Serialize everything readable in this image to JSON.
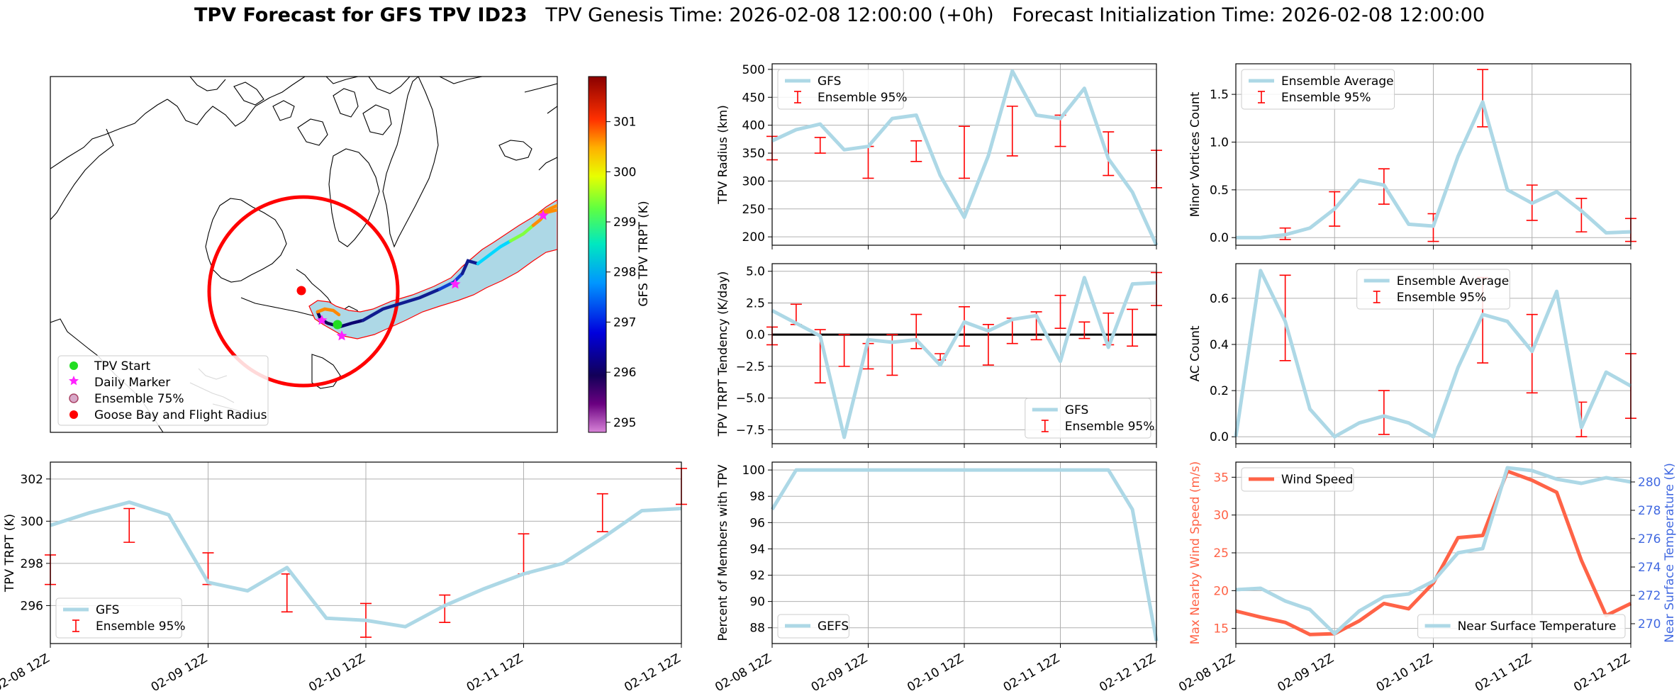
{
  "figure": {
    "title_bold": "TPV Forecast for GFS TPV ID23",
    "title_genesis": "TPV Genesis Time: 2026-02-08 12:00:00 (+0h)",
    "title_init": "Forecast Initialization Time: 2026-02-08 12:00:00"
  },
  "colors": {
    "gfs_line": "#add8e6",
    "error_bar": "#ff0000",
    "wind_line": "#ff6347",
    "temp_axis": "#4169e1",
    "grid": "#b0b0b0"
  },
  "map": {
    "colorbar_label": "GFS TPV TRPT (K)",
    "colorbar_ticks": [
      295,
      296,
      297,
      298,
      299,
      300,
      301
    ],
    "colorbar_range": [
      294.8,
      301.9
    ],
    "legend": [
      {
        "label": "TPV Start",
        "marker": "dot",
        "color": "#22dd22"
      },
      {
        "label": "Daily Marker",
        "marker": "star",
        "color": "#ff22ff"
      },
      {
        "label": "Ensemble 75%",
        "marker": "ring",
        "color": "#d8a8c8"
      },
      {
        "label": "Goose Bay and Flight Radius",
        "marker": "dot",
        "color": "#ff0000"
      }
    ]
  },
  "chart_data": [
    {
      "id": "radius",
      "type": "line",
      "xlabel": "",
      "ylabel": "TPV Radius (km)",
      "x_ticks": [],
      "xlim": [
        0,
        16
      ],
      "ylim": [
        185,
        510
      ],
      "y_ticks": [
        200,
        250,
        300,
        350,
        400,
        450,
        500
      ],
      "series": [
        {
          "name": "GFS",
          "values": [
            372,
            392,
            402,
            356,
            362,
            412,
            418,
            310,
            235,
            345,
            497,
            418,
            412,
            466,
            340,
            280,
            185
          ]
        }
      ],
      "error_bars": {
        "name": "Ensemble 95%",
        "x": [
          0,
          2,
          4,
          6,
          8,
          10,
          12,
          14,
          16
        ],
        "low": [
          338,
          350,
          305,
          335,
          305,
          345,
          362,
          310,
          288
        ],
        "high": [
          380,
          378,
          362,
          372,
          398,
          434,
          418,
          388,
          355
        ]
      },
      "legend": [
        "GFS",
        "Ensemble 95%"
      ]
    },
    {
      "id": "minor",
      "type": "line",
      "xlabel": "",
      "ylabel": "Minor Vortices Count",
      "x_ticks": [],
      "xlim": [
        0,
        16
      ],
      "ylim": [
        -0.08,
        1.82
      ],
      "y_ticks": [
        0.0,
        0.5,
        1.0,
        1.5
      ],
      "series": [
        {
          "name": "Ensemble Average",
          "values": [
            0.0,
            0.0,
            0.03,
            0.1,
            0.3,
            0.6,
            0.55,
            0.14,
            0.12,
            0.85,
            1.42,
            0.5,
            0.36,
            0.48,
            0.28,
            0.05,
            0.06
          ]
        }
      ],
      "error_bars": {
        "name": "Ensemble 95%",
        "x": [
          2,
          4,
          6,
          8,
          10,
          12,
          14,
          16
        ],
        "low": [
          -0.02,
          0.12,
          0.35,
          -0.04,
          1.16,
          0.18,
          0.06,
          -0.04
        ],
        "high": [
          0.1,
          0.48,
          0.72,
          0.25,
          1.76,
          0.55,
          0.41,
          0.2
        ]
      },
      "legend": [
        "Ensemble Average",
        "Ensemble 95%"
      ]
    },
    {
      "id": "tendency",
      "type": "line",
      "xlabel": "",
      "ylabel": "TPV TRPT Tendency (K/day)",
      "x_ticks": [],
      "xlim": [
        0,
        16
      ],
      "ylim": [
        -8.6,
        5.6
      ],
      "y_ticks": [
        -7.5,
        -5.0,
        -2.5,
        0.0,
        2.5,
        5.0
      ],
      "zero_line": true,
      "series": [
        {
          "name": "GFS",
          "values": [
            1.9,
            0.9,
            -0.1,
            -8.1,
            -0.4,
            -0.6,
            -0.4,
            -2.4,
            1.0,
            0.3,
            1.2,
            1.5,
            -2.1,
            4.5,
            -1.0,
            4.0,
            4.1
          ]
        }
      ],
      "error_bars": {
        "name": "Ensemble 95%",
        "x": [
          0,
          1,
          2,
          3,
          4,
          5,
          6,
          7,
          8,
          9,
          10,
          11,
          12,
          13,
          14,
          15,
          16
        ],
        "low": [
          -0.8,
          0.8,
          -3.8,
          -2.5,
          -2.7,
          -3.2,
          -1.1,
          -2.0,
          -0.9,
          -2.4,
          -0.7,
          -0.4,
          0.5,
          -0.3,
          -0.8,
          -0.9,
          2.3
        ],
        "high": [
          0.6,
          2.4,
          0.4,
          0.0,
          -0.7,
          0.0,
          1.6,
          -1.5,
          2.2,
          0.8,
          1.3,
          1.8,
          3.1,
          1.0,
          1.7,
          2.0,
          4.9
        ]
      },
      "legend": [
        "GFS",
        "Ensemble 95%"
      ]
    },
    {
      "id": "ac",
      "type": "line",
      "xlabel": "",
      "ylabel": "AC Count",
      "x_ticks": [],
      "xlim": [
        0,
        16
      ],
      "ylim": [
        -0.03,
        0.75
      ],
      "y_ticks": [
        0.0,
        0.2,
        0.4,
        0.6
      ],
      "series": [
        {
          "name": "Ensemble Average",
          "values": [
            0.0,
            0.72,
            0.5,
            0.12,
            0.0,
            0.06,
            0.09,
            0.06,
            0.0,
            0.3,
            0.53,
            0.5,
            0.37,
            0.63,
            0.04,
            0.28,
            0.22
          ]
        }
      ],
      "error_bars": {
        "name": "Ensemble 95%",
        "x": [
          2,
          6,
          10,
          12,
          14,
          16
        ],
        "low": [
          0.33,
          0.01,
          0.32,
          0.19,
          0.0,
          0.08
        ],
        "high": [
          0.7,
          0.2,
          0.69,
          0.53,
          0.15,
          0.36
        ]
      },
      "legend": [
        "Ensemble Average",
        "Ensemble 95%"
      ]
    },
    {
      "id": "trpt",
      "type": "line",
      "xlabel": "",
      "ylabel": "TPV TRPT (K)",
      "x_ticks": [
        "02-08 12Z",
        "02-09 12Z",
        "02-10 12Z",
        "02-11 12Z",
        "02-12 12Z"
      ],
      "xlim": [
        0,
        16
      ],
      "ylim": [
        294.2,
        302.8
      ],
      "y_ticks": [
        296,
        298,
        300,
        302
      ],
      "series": [
        {
          "name": "GFS",
          "values": [
            299.8,
            300.4,
            300.9,
            300.3,
            297.1,
            296.7,
            297.8,
            295.4,
            295.3,
            295.0,
            296.0,
            296.8,
            297.5,
            298.0,
            299.2,
            300.5,
            300.6
          ]
        }
      ],
      "error_bars": {
        "name": "Ensemble 95%",
        "x": [
          0,
          2,
          4,
          6,
          8,
          10,
          12,
          14,
          16
        ],
        "low": [
          297.0,
          299.0,
          297.0,
          295.7,
          294.5,
          295.2,
          297.5,
          299.5,
          300.8
        ],
        "high": [
          298.4,
          300.6,
          298.5,
          297.5,
          296.1,
          296.5,
          299.4,
          301.3,
          302.5
        ]
      },
      "legend": [
        "GFS",
        "Ensemble 95%"
      ]
    },
    {
      "id": "percent",
      "type": "line",
      "xlabel": "",
      "ylabel": "Percent of Members with TPV",
      "x_ticks": [
        "02-08 12Z",
        "02-09 12Z",
        "02-10 12Z",
        "02-11 12Z",
        "02-12 12Z"
      ],
      "xlim": [
        0,
        16
      ],
      "ylim": [
        86.8,
        100.6
      ],
      "y_ticks": [
        88,
        90,
        92,
        94,
        96,
        98,
        100
      ],
      "series": [
        {
          "name": "GEFS",
          "values": [
            97,
            100,
            100,
            100,
            100,
            100,
            100,
            100,
            100,
            100,
            100,
            100,
            100,
            100,
            100,
            97,
            87
          ]
        }
      ],
      "legend": [
        "GEFS"
      ]
    },
    {
      "id": "wind_temp",
      "type": "line",
      "xlabel": "",
      "ylabel": "Max Nearby Wind Speed (m/s)",
      "ylabel_right": "Near Surface Temperature (K)",
      "x_ticks": [
        "02-08 12Z",
        "02-09 12Z",
        "02-10 12Z",
        "02-11 12Z",
        "02-12 12Z"
      ],
      "xlim": [
        0,
        16
      ],
      "ylim": [
        13.0,
        37.0
      ],
      "y_ticks": [
        15,
        20,
        25,
        30,
        35
      ],
      "ylim_right": [
        268.6,
        281.4
      ],
      "y_ticks_right": [
        270,
        272,
        274,
        276,
        278,
        280
      ],
      "series": [
        {
          "name": "Wind Speed",
          "axis": "left",
          "values": [
            17.3,
            16.5,
            15.8,
            14.2,
            14.3,
            16.0,
            18.3,
            17.6,
            21.0,
            27.0,
            27.3,
            35.8,
            34.6,
            33.0,
            24.0,
            16.7,
            18.3
          ]
        },
        {
          "name": "Near Surface Temperature",
          "axis": "right",
          "values": [
            272.4,
            272.5,
            271.6,
            271.0,
            269.3,
            270.9,
            271.9,
            272.1,
            273.0,
            275.0,
            275.3,
            281.0,
            280.8,
            280.2,
            279.9,
            280.3,
            280.0
          ]
        }
      ],
      "legend": [
        "Wind Speed",
        "Near Surface Temperature"
      ]
    }
  ]
}
